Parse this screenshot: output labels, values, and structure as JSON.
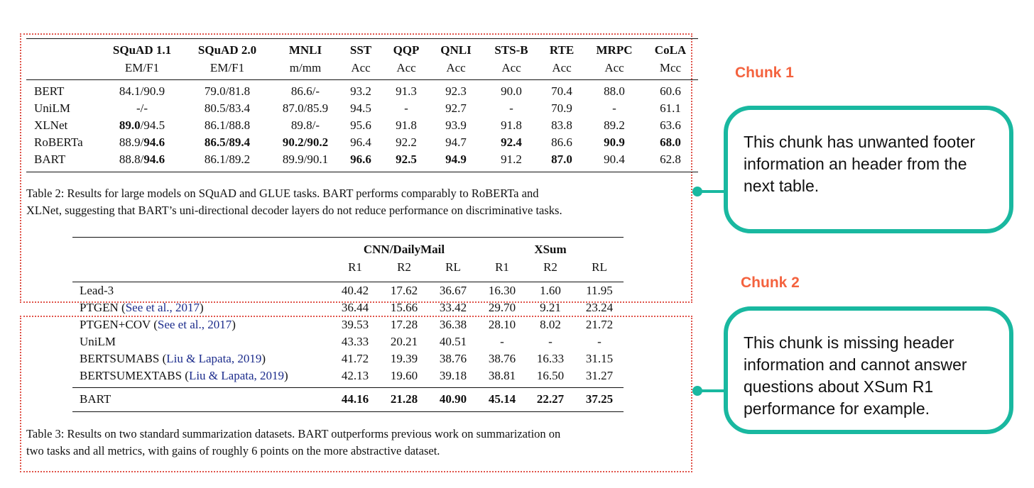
{
  "table2": {
    "columns": [
      {
        "name": "SQuAD 1.1",
        "metric": "EM/F1"
      },
      {
        "name": "SQuAD 2.0",
        "metric": "EM/F1"
      },
      {
        "name": "MNLI",
        "metric": "m/mm"
      },
      {
        "name": "SST",
        "metric": "Acc"
      },
      {
        "name": "QQP",
        "metric": "Acc"
      },
      {
        "name": "QNLI",
        "metric": "Acc"
      },
      {
        "name": "STS-B",
        "metric": "Acc"
      },
      {
        "name": "RTE",
        "metric": "Acc"
      },
      {
        "name": "MRPC",
        "metric": "Acc"
      },
      {
        "name": "CoLA",
        "metric": "Mcc"
      }
    ],
    "rows": [
      {
        "model": "BERT",
        "cells": [
          [
            "84.1/90.9"
          ],
          [
            "79.0/81.8"
          ],
          [
            "86.6/-"
          ],
          [
            "93.2"
          ],
          [
            "91.3"
          ],
          [
            "92.3"
          ],
          [
            "90.0"
          ],
          [
            "70.4"
          ],
          [
            "88.0"
          ],
          [
            "60.6"
          ]
        ]
      },
      {
        "model": "UniLM",
        "cells": [
          [
            "-/-"
          ],
          [
            "80.5/83.4"
          ],
          [
            "87.0/85.9"
          ],
          [
            "94.5"
          ],
          [
            "-"
          ],
          [
            "92.7"
          ],
          [
            "-"
          ],
          [
            "70.9"
          ],
          [
            "-"
          ],
          [
            "61.1"
          ]
        ]
      },
      {
        "model": "XLNet",
        "cells": [
          [
            "89.0",
            "/94.5"
          ],
          [
            "86.1/88.8"
          ],
          [
            "89.8/-"
          ],
          [
            "95.6"
          ],
          [
            "91.8"
          ],
          [
            "93.9"
          ],
          [
            "91.8"
          ],
          [
            "83.8"
          ],
          [
            "89.2"
          ],
          [
            "63.6"
          ]
        ]
      },
      {
        "model": "RoBERTa",
        "cells": [
          [
            "88.9/",
            "94.6"
          ],
          [
            "86.5/89.4*"
          ],
          [
            "90.2/90.2*"
          ],
          [
            "96.4"
          ],
          [
            "92.2"
          ],
          [
            "94.7"
          ],
          [
            "92.4*"
          ],
          [
            "86.6"
          ],
          [
            "90.9*"
          ],
          [
            "68.0*"
          ]
        ]
      },
      {
        "model": "BART",
        "cells": [
          [
            "88.8/",
            "94.6"
          ],
          [
            "86.1/89.2"
          ],
          [
            "89.9/90.1"
          ],
          [
            "96.6*"
          ],
          [
            "92.5*"
          ],
          [
            "94.9*"
          ],
          [
            "91.2"
          ],
          [
            "87.0*"
          ],
          [
            "90.4"
          ],
          [
            "62.8"
          ]
        ]
      }
    ],
    "caption_lines": [
      "Table 2:  Results for large models on SQuAD and GLUE tasks.  BART performs comparably to RoBERTa and",
      "XLNet, suggesting that BART’s uni-directional decoder layers do not reduce performance on discriminative tasks."
    ]
  },
  "table3": {
    "groups": [
      "CNN/DailyMail",
      "XSum"
    ],
    "subcols": [
      "R1",
      "R2",
      "RL",
      "R1",
      "R2",
      "RL"
    ],
    "rows": [
      {
        "model": "Lead-3",
        "cite": "",
        "values": [
          "40.42",
          "17.62",
          "36.67",
          "16.30",
          "1.60",
          "11.95"
        ]
      },
      {
        "model": "PTGEN (",
        "cite": "See et al., 2017",
        "values": [
          "36.44",
          "15.66",
          "33.42",
          "29.70",
          "9.21",
          "23.24"
        ]
      },
      {
        "model": "PTGEN+COV (",
        "cite": "See et al., 2017",
        "values": [
          "39.53",
          "17.28",
          "36.38",
          "28.10",
          "8.02",
          "21.72"
        ]
      },
      {
        "model": "UniLM",
        "cite": "",
        "values": [
          "43.33",
          "20.21",
          "40.51",
          "-",
          "-",
          "-"
        ]
      },
      {
        "model": "BERTSUMABS (",
        "cite": "Liu & Lapata, 2019",
        "values": [
          "41.72",
          "19.39",
          "38.76",
          "38.76",
          "16.33",
          "31.15"
        ]
      },
      {
        "model": "BERTSUMEXTABS (",
        "cite": "Liu & Lapata, 2019",
        "values": [
          "42.13",
          "19.60",
          "39.18",
          "38.81",
          "16.50",
          "31.27"
        ]
      }
    ],
    "bart_row": {
      "model": "BART",
      "values": [
        "44.16",
        "21.28",
        "40.90",
        "45.14",
        "22.27",
        "37.25"
      ]
    },
    "caption_lines": [
      "Table 3: Results on two standard summarization datasets. BART outperforms previous work on summarization on",
      "two tasks and all metrics, with gains of roughly 6 points on the more abstractive dataset."
    ]
  },
  "callouts": {
    "chunk1": {
      "title": "Chunk 1",
      "text": "This chunk has unwanted footer information an header from the next table."
    },
    "chunk2": {
      "title": "Chunk 2",
      "text": "This chunk is missing header information and cannot answer questions about XSum R1 performance for example."
    }
  },
  "colors": {
    "chunk_border": "#e0544a",
    "chunk_title": "#f4623e",
    "callout_border": "#19b8a0",
    "citation": "#1c2c8c"
  }
}
